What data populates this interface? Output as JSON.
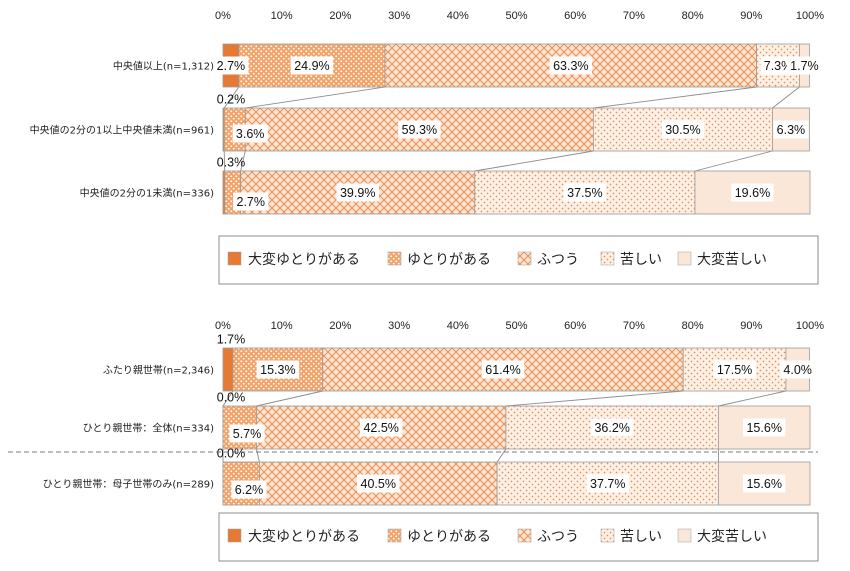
{
  "legend": {
    "items": [
      "大変ゆとりがある",
      "ゆとりがある",
      "ふつう",
      "苦しい",
      "大変苦しい"
    ]
  },
  "chart_data": [
    {
      "type": "bar",
      "orientation": "horizontal",
      "stacked": "100%",
      "xlim": [
        0,
        100
      ],
      "x_ticks": [
        "0%",
        "10%",
        "20%",
        "30%",
        "40%",
        "50%",
        "60%",
        "70%",
        "80%",
        "90%",
        "100%"
      ],
      "legend_position": "bottom",
      "categories": [
        "中央値以上(n=1,312)",
        "中央値の2分の1以上中央値未満(n=961)",
        "中央値の2分の1未満(n=336)"
      ],
      "series": [
        {
          "name": "大変ゆとりがある",
          "values": [
            2.7,
            0.2,
            0.3
          ]
        },
        {
          "name": "ゆとりがある",
          "values": [
            24.9,
            3.6,
            2.7
          ]
        },
        {
          "name": "ふつう",
          "values": [
            63.3,
            59.3,
            39.9
          ]
        },
        {
          "name": "苦しい",
          "values": [
            7.3,
            30.5,
            37.5
          ]
        },
        {
          "name": "大変苦しい",
          "values": [
            1.7,
            6.3,
            19.6
          ]
        }
      ],
      "data_labels": [
        [
          "2.7%",
          "24.9%",
          "63.3%",
          "7.3%",
          "1.7%"
        ],
        [
          "0.2%",
          "3.6%",
          "59.3%",
          "30.5%",
          "6.3%"
        ],
        [
          "0.3%",
          "2.7%",
          "39.9%",
          "37.5%",
          "19.6%"
        ]
      ]
    },
    {
      "type": "bar",
      "orientation": "horizontal",
      "stacked": "100%",
      "xlim": [
        0,
        100
      ],
      "x_ticks": [
        "0%",
        "10%",
        "20%",
        "30%",
        "40%",
        "50%",
        "60%",
        "70%",
        "80%",
        "90%",
        "100%"
      ],
      "legend_position": "bottom",
      "categories": [
        "ふたり親世帯(n=2,346)",
        "ひとり親世帯：全体(n=334)",
        "ひとり親世帯：母子世帯のみ(n=289)"
      ],
      "series": [
        {
          "name": "大変ゆとりがある",
          "values": [
            1.7,
            0.0,
            0.0
          ]
        },
        {
          "name": "ゆとりがある",
          "values": [
            15.3,
            5.7,
            6.2
          ]
        },
        {
          "name": "ふつう",
          "values": [
            61.4,
            42.5,
            40.5
          ]
        },
        {
          "name": "苦しい",
          "values": [
            17.5,
            36.2,
            37.7
          ]
        },
        {
          "name": "大変苦しい",
          "values": [
            4.0,
            15.6,
            15.6
          ]
        }
      ],
      "data_labels": [
        [
          "1.7%",
          "15.3%",
          "61.4%",
          "17.5%",
          "4.0%"
        ],
        [
          "0.0%",
          "5.7%",
          "42.5%",
          "36.2%",
          "15.6%"
        ],
        [
          "0.0%",
          "6.2%",
          "40.5%",
          "37.7%",
          "15.6%"
        ]
      ]
    }
  ]
}
